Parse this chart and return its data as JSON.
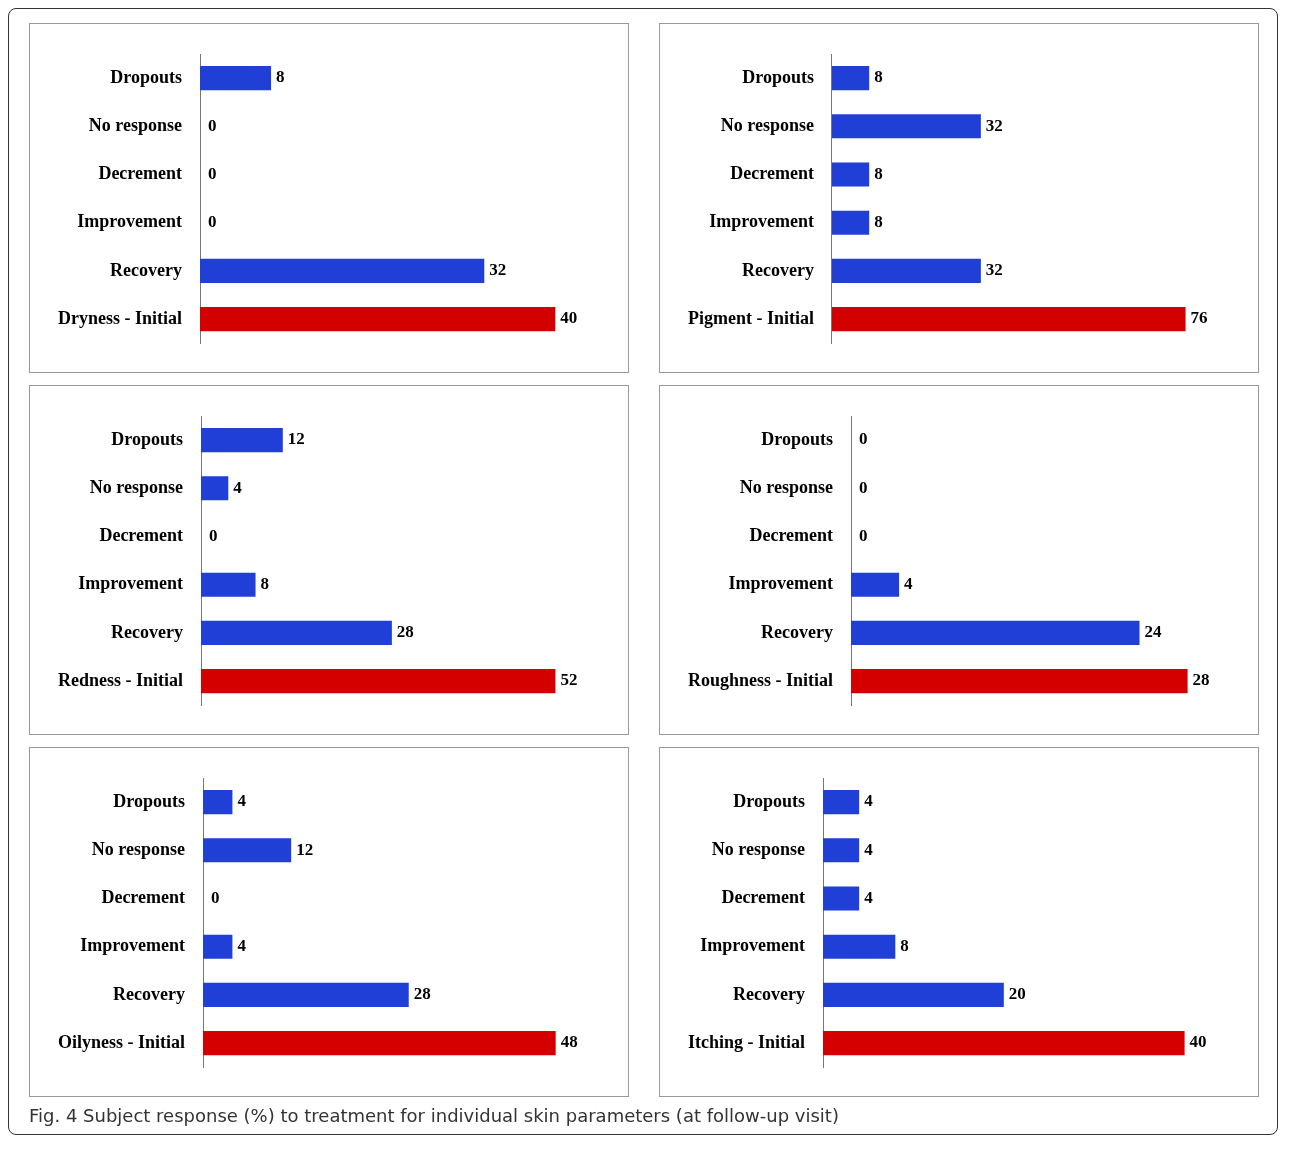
{
  "chart_data": [
    {
      "type": "bar",
      "orientation": "horizontal",
      "categories": [
        "Dropouts",
        "No response",
        "Decrement",
        "Improvement",
        "Recovery",
        "Dryness - Initial"
      ],
      "values": [
        8,
        0,
        0,
        0,
        32,
        40
      ],
      "colors": [
        "#1f3fd6",
        "#1f3fd6",
        "#1f3fd6",
        "#1f3fd6",
        "#1f3fd6",
        "#d40000"
      ],
      "data_labels": true,
      "grid": false,
      "legend": false,
      "tick_labels": "y"
    },
    {
      "type": "bar",
      "orientation": "horizontal",
      "categories": [
        "Dropouts",
        "No response",
        "Decrement",
        "Improvement",
        "Recovery",
        "Pigment - Initial"
      ],
      "values": [
        8,
        32,
        8,
        8,
        32,
        76
      ],
      "colors": [
        "#1f3fd6",
        "#1f3fd6",
        "#1f3fd6",
        "#1f3fd6",
        "#1f3fd6",
        "#d40000"
      ],
      "data_labels": true,
      "grid": false,
      "legend": false,
      "tick_labels": "y"
    },
    {
      "type": "bar",
      "orientation": "horizontal",
      "categories": [
        "Dropouts",
        "No response",
        "Decrement",
        "Improvement",
        "Recovery",
        "Redness - Initial"
      ],
      "values": [
        12,
        4,
        0,
        8,
        28,
        52
      ],
      "colors": [
        "#1f3fd6",
        "#1f3fd6",
        "#1f3fd6",
        "#1f3fd6",
        "#1f3fd6",
        "#d40000"
      ],
      "data_labels": true,
      "grid": false,
      "legend": false,
      "tick_labels": "y"
    },
    {
      "type": "bar",
      "orientation": "horizontal",
      "categories": [
        "Dropouts",
        "No response",
        "Decrement",
        "Improvement",
        "Recovery",
        "Roughness - Initial"
      ],
      "values": [
        0,
        0,
        0,
        4,
        24,
        28
      ],
      "colors": [
        "#1f3fd6",
        "#1f3fd6",
        "#1f3fd6",
        "#1f3fd6",
        "#1f3fd6",
        "#d40000"
      ],
      "data_labels": true,
      "grid": false,
      "legend": false,
      "tick_labels": "y"
    },
    {
      "type": "bar",
      "orientation": "horizontal",
      "categories": [
        "Dropouts",
        "No response",
        "Decrement",
        "Improvement",
        "Recovery",
        "Oilyness - Initial"
      ],
      "values": [
        4,
        12,
        0,
        4,
        28,
        48
      ],
      "colors": [
        "#1f3fd6",
        "#1f3fd6",
        "#1f3fd6",
        "#1f3fd6",
        "#1f3fd6",
        "#d40000"
      ],
      "data_labels": true,
      "grid": false,
      "legend": false,
      "tick_labels": "y"
    },
    {
      "type": "bar",
      "orientation": "horizontal",
      "categories": [
        "Dropouts",
        "No response",
        "Decrement",
        "Improvement",
        "Recovery",
        "Itching - Initial"
      ],
      "values": [
        4,
        4,
        4,
        8,
        20,
        40
      ],
      "colors": [
        "#1f3fd6",
        "#1f3fd6",
        "#1f3fd6",
        "#1f3fd6",
        "#1f3fd6",
        "#d40000"
      ],
      "data_labels": true,
      "grid": false,
      "legend": false,
      "tick_labels": "y",
      "annotations": [
        "Fig. 4 Subject response (%) to treatment for individual skin parameters (at follow-up visit)"
      ]
    }
  ]
}
